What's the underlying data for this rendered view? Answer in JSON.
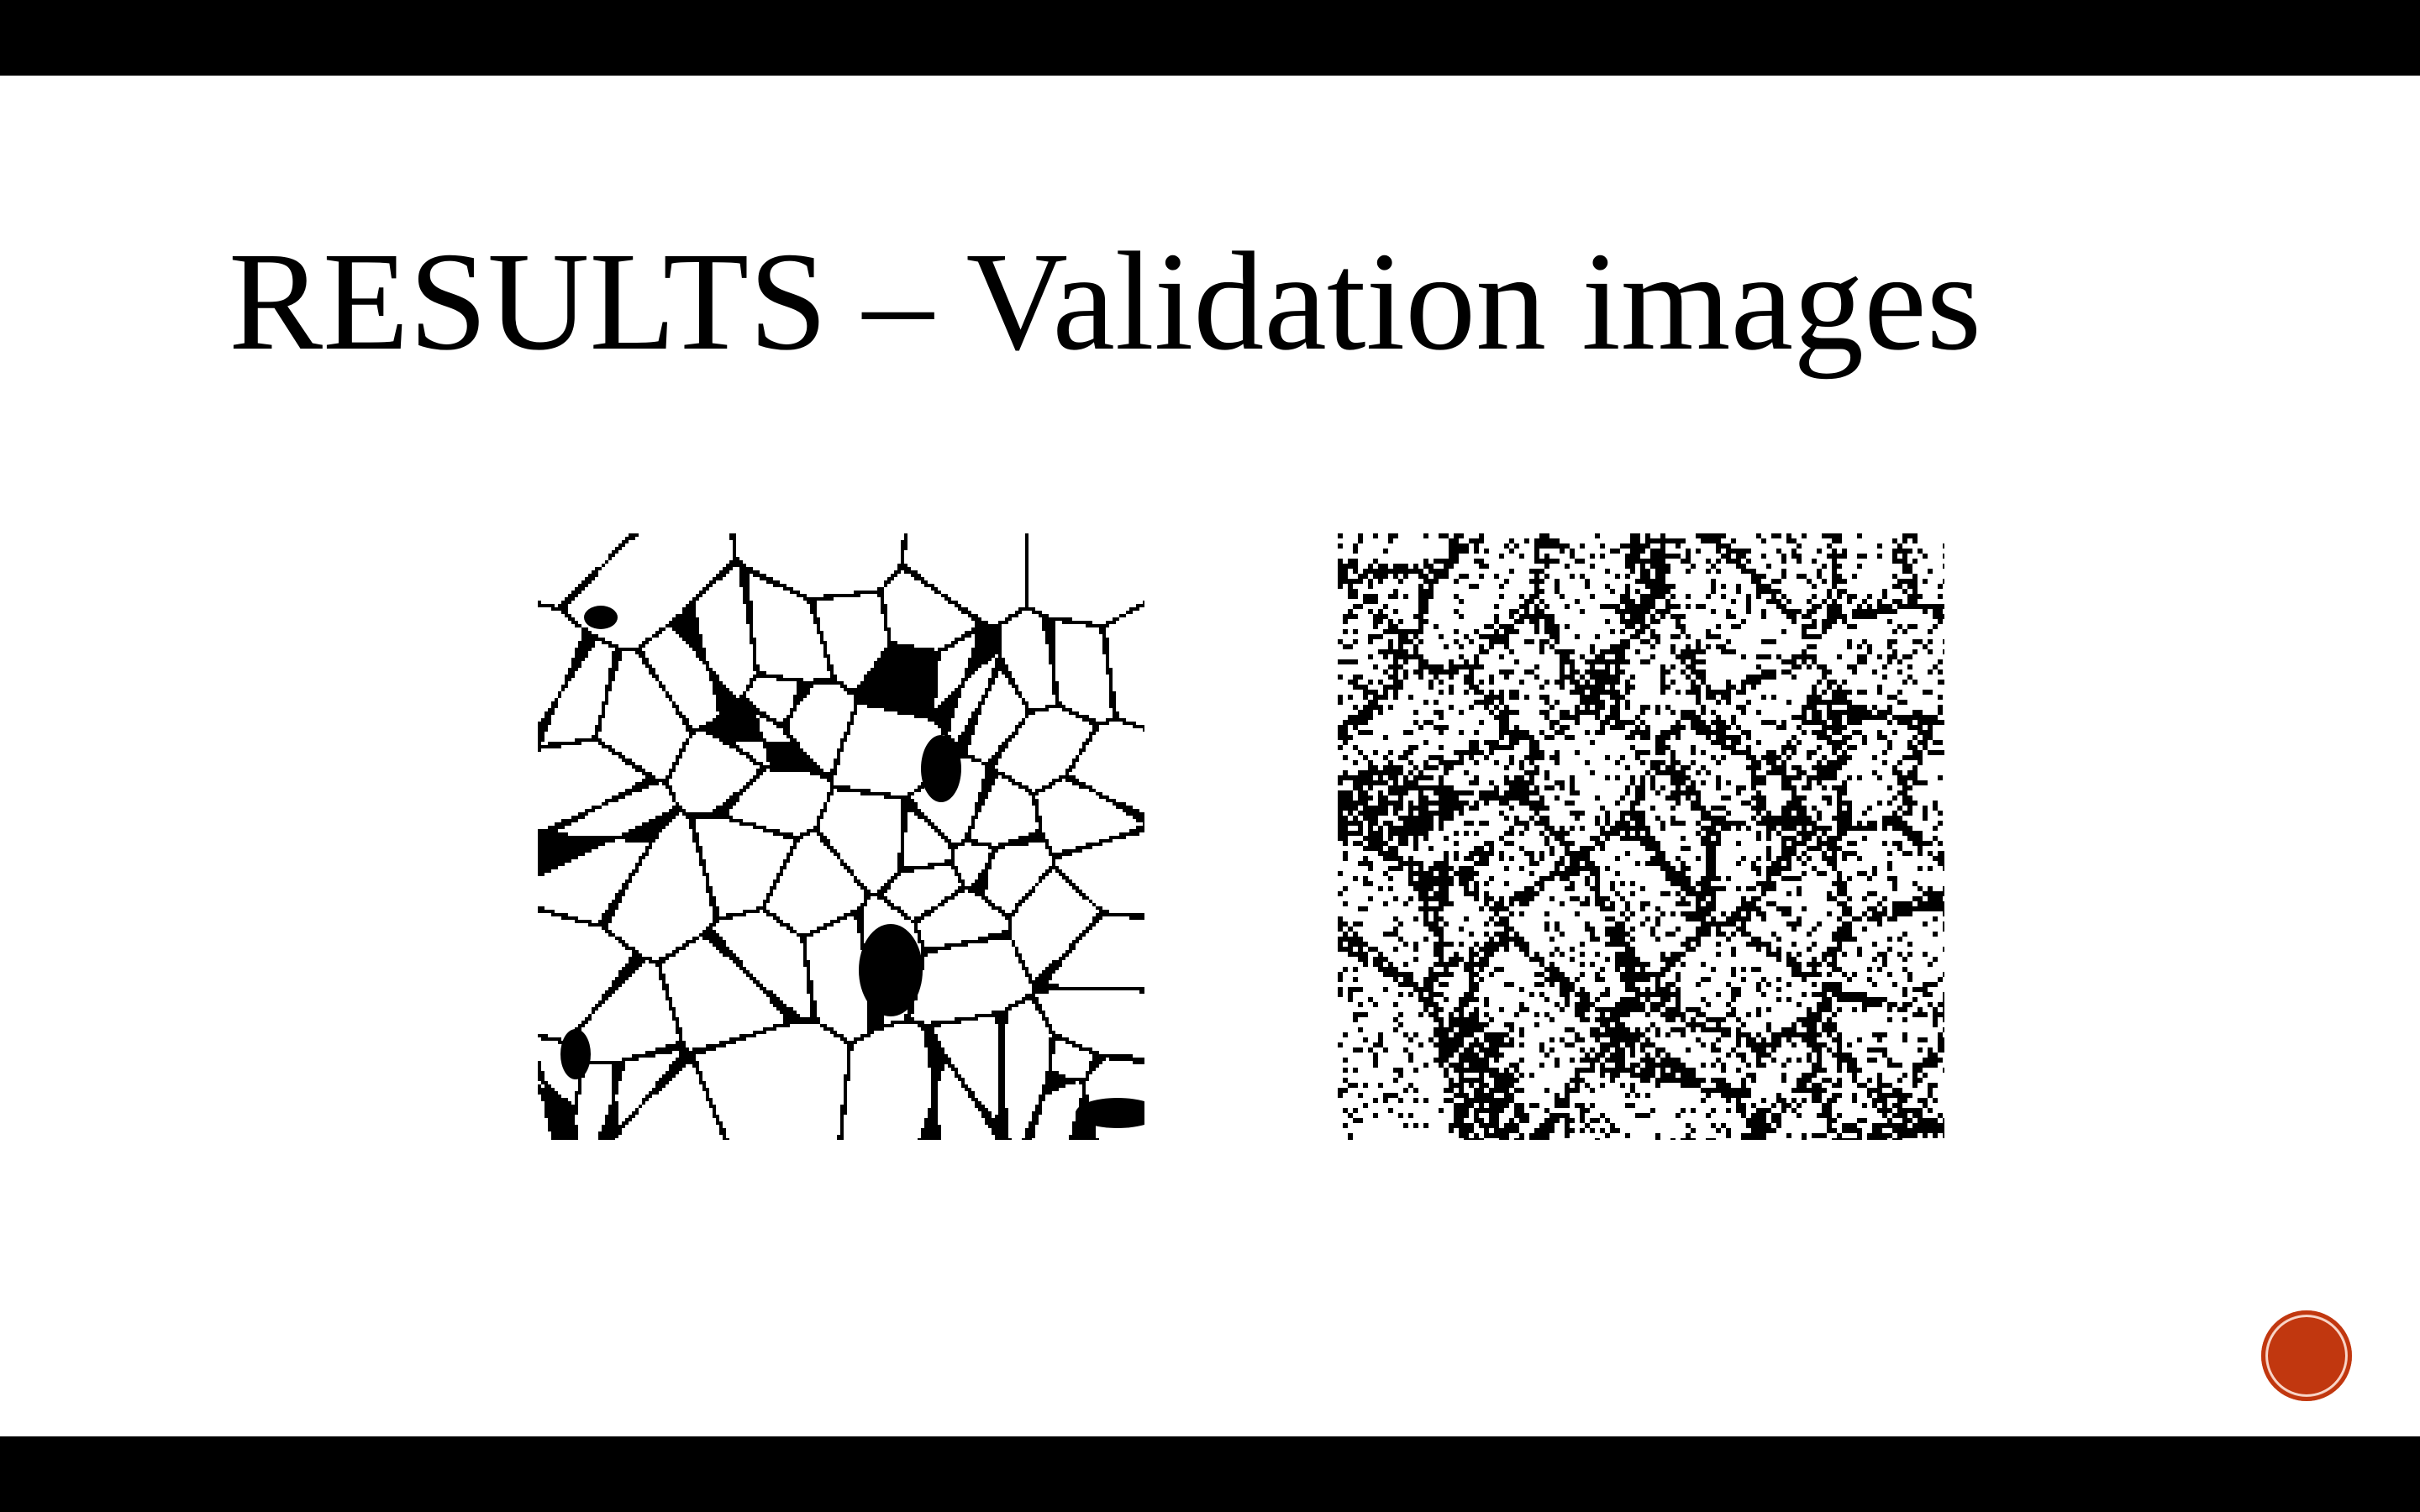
{
  "slide": {
    "title": "RESULTS – Validation images"
  },
  "images": {
    "left": {
      "icon": "segmentation-mask-image"
    },
    "right": {
      "icon": "prediction-noise-image"
    }
  },
  "controls": {
    "record_button": {
      "icon": "record-circle-icon",
      "color": "#c1370f"
    }
  }
}
